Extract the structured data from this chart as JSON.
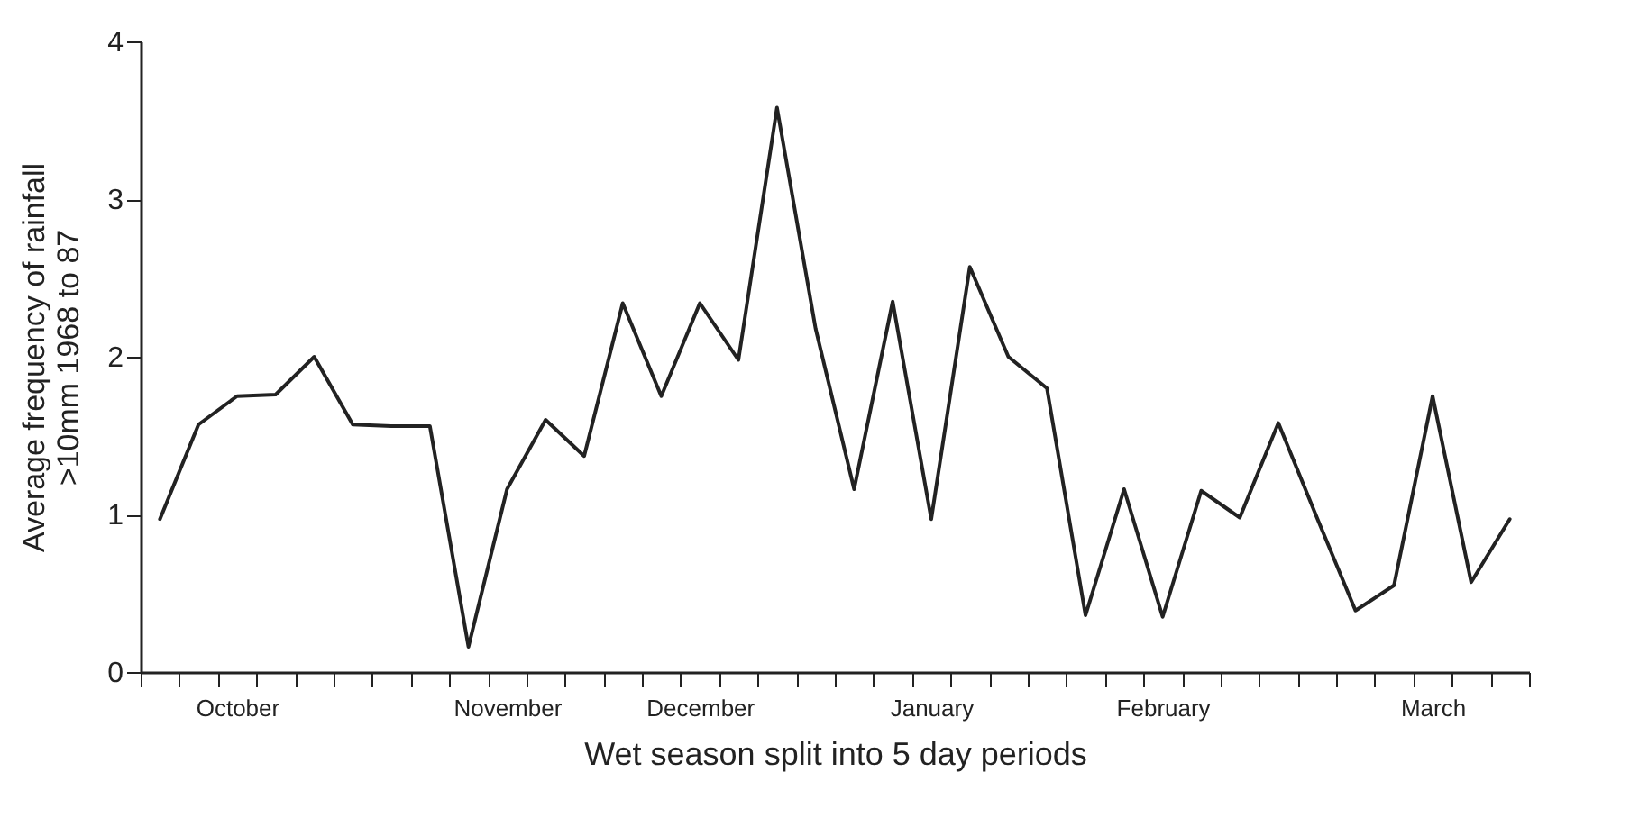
{
  "chart_data": {
    "type": "line",
    "xlabel": "Wet season split into 5 day periods",
    "ylabel": "Average frequency of rainfall\n>10mm 1968 to 87",
    "categories": [
      null,
      null,
      "October",
      null,
      null,
      null,
      null,
      null,
      null,
      "November",
      null,
      null,
      null,
      null,
      "December",
      null,
      null,
      null,
      null,
      null,
      "January",
      null,
      null,
      null,
      null,
      null,
      "February",
      null,
      null,
      null,
      null,
      null,
      null,
      "March",
      null,
      null
    ],
    "series": [
      {
        "color": "#222222",
        "values": [
          0.97,
          1.57,
          1.75,
          1.76,
          2.0,
          1.57,
          1.56,
          1.56,
          0.16,
          1.16,
          1.6,
          1.37,
          2.34,
          1.75,
          2.34,
          1.98,
          3.58,
          2.18,
          1.16,
          2.35,
          0.97,
          2.57,
          2.0,
          1.8,
          0.36,
          1.16,
          0.35,
          1.15,
          0.98,
          1.58,
          0.98,
          0.39,
          0.55,
          1.75,
          0.57,
          0.97
        ]
      }
    ],
    "ylim": [
      0,
      4
    ],
    "yticks": [
      0,
      1,
      2,
      3,
      4
    ],
    "grid": false,
    "marker": "none",
    "line_style": "solid"
  }
}
